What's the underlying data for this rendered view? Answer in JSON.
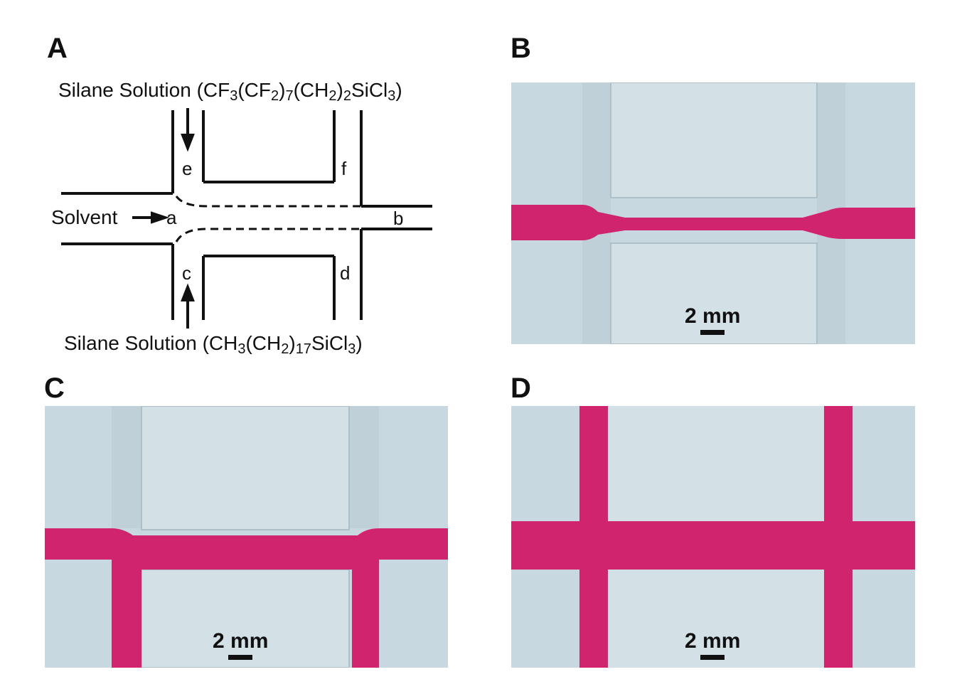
{
  "panels": {
    "a": {
      "letter": "A",
      "top_label": {
        "prefix": "Silane Solution (CF",
        "s1": "3",
        "m1": "(CF",
        "s2": "2",
        "m2": ")",
        "s3": "7",
        "m3": "(CH",
        "s4": "2",
        "m4": ")",
        "s5": "2",
        "m5": "SiCl",
        "s6": "3",
        "suffix": ")"
      },
      "bottom_label": {
        "prefix": "Silane Solution (CH",
        "s1": "3",
        "m1": "(CH",
        "s2": "2",
        "m2": ")",
        "s3": "17",
        "m3": "SiCl",
        "s4": "3",
        "suffix": ")"
      },
      "solvent_label": "Solvent",
      "ports": {
        "a": "a",
        "b": "b",
        "c": "c",
        "d": "d",
        "e": "e",
        "f": "f"
      }
    },
    "b": {
      "letter": "B",
      "scale_label": "2 mm"
    },
    "c": {
      "letter": "C",
      "scale_label": "2 mm"
    },
    "d": {
      "letter": "D",
      "scale_label": "2 mm"
    }
  },
  "colors": {
    "photo_background": "#c9d9e1",
    "dye": "#d1246f",
    "line": "#111111"
  }
}
